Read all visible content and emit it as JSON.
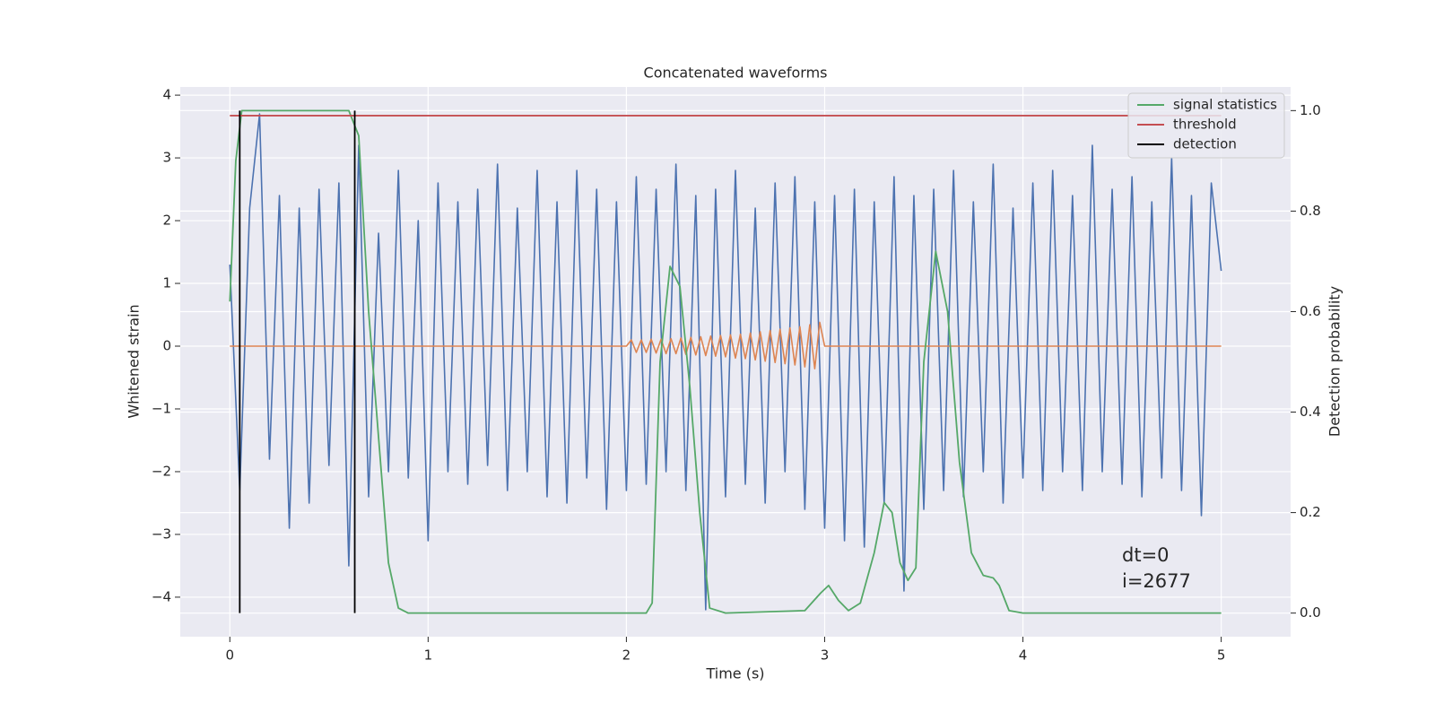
{
  "chart_data": {
    "type": "line",
    "title": "Concatenated waveforms",
    "xlabel": "Time (s)",
    "ylabel": "Whitened strain",
    "y2label": "Detection probability",
    "annotations": [
      "dt=0",
      "i=2677"
    ],
    "xlim": [
      -0.25,
      5.35
    ],
    "ylim": [
      -4.63,
      4.13
    ],
    "y2lim": [
      -0.047,
      1.047
    ],
    "xticks": [
      0,
      1,
      2,
      3,
      4,
      5
    ],
    "yticks": [
      {
        "value": -4,
        "label": "−4"
      },
      {
        "value": -3,
        "label": "−3"
      },
      {
        "value": -2,
        "label": "−2"
      },
      {
        "value": -1,
        "label": "−1"
      },
      0,
      1,
      2,
      3,
      4
    ],
    "y2ticks": [
      {
        "value": 0,
        "label": "0.0"
      },
      0.2,
      0.4,
      0.6,
      0.8,
      {
        "value": 1,
        "label": "1.0"
      }
    ],
    "grid": true,
    "legend": "upper right",
    "series": [
      {
        "color": "#4c72b0",
        "axis": "y",
        "x": [
          0,
          0.05,
          0.1,
          0.15,
          0.2,
          0.25,
          0.3,
          0.35,
          0.4,
          0.45,
          0.5,
          0.55,
          0.6,
          0.65,
          0.7,
          0.75,
          0.8,
          0.85,
          0.9,
          0.95,
          1,
          1.05,
          1.1,
          1.15,
          1.2,
          1.25,
          1.3,
          1.35,
          1.4,
          1.45,
          1.5,
          1.55,
          1.6,
          1.65,
          1.7,
          1.75,
          1.8,
          1.85,
          1.9,
          1.95,
          2,
          2.05,
          2.1,
          2.15,
          2.2,
          2.25,
          2.3,
          2.35,
          2.4,
          2.45,
          2.5,
          2.55,
          2.6,
          2.65,
          2.7,
          2.75,
          2.8,
          2.85,
          2.9,
          2.95,
          3,
          3.05,
          3.1,
          3.15,
          3.2,
          3.25,
          3.3,
          3.35,
          3.4,
          3.45,
          3.5,
          3.55,
          3.6,
          3.65,
          3.7,
          3.75,
          3.8,
          3.85,
          3.9,
          3.95,
          4,
          4.05,
          4.1,
          4.15,
          4.2,
          4.25,
          4.3,
          4.35,
          4.4,
          4.45,
          4.5,
          4.55,
          4.6,
          4.65,
          4.7,
          4.75,
          4.8,
          4.85,
          4.9,
          4.95,
          5
        ],
        "values": [
          1.3,
          -2.3,
          2.2,
          3.7,
          -1.8,
          2.4,
          -2.9,
          2.2,
          -2.5,
          2.5,
          -1.9,
          2.6,
          -3.5,
          3.2,
          -2.4,
          1.8,
          -2.0,
          2.8,
          -2.1,
          2.0,
          -3.1,
          2.6,
          -2.0,
          2.3,
          -2.2,
          2.5,
          -1.9,
          2.9,
          -2.3,
          2.2,
          -2.0,
          2.8,
          -2.4,
          2.3,
          -2.5,
          2.8,
          -2.1,
          2.5,
          -2.6,
          2.3,
          -2.3,
          2.7,
          -2.2,
          2.5,
          -2.0,
          2.9,
          -2.3,
          2.4,
          -4.2,
          2.5,
          -2.4,
          2.8,
          -2.2,
          2.2,
          -2.5,
          2.6,
          -2.0,
          2.7,
          -2.6,
          2.3,
          -2.9,
          2.4,
          -3.1,
          2.5,
          -3.2,
          2.3,
          -2.5,
          2.7,
          -3.9,
          2.4,
          -2.6,
          2.5,
          -2.3,
          2.8,
          -2.4,
          2.3,
          -2.0,
          2.9,
          -2.5,
          2.2,
          -2.1,
          2.6,
          -2.3,
          2.8,
          -2.0,
          2.4,
          -2.3,
          3.2,
          -2.0,
          2.5,
          -2.2,
          2.7,
          -2.4,
          2.3,
          -2.1,
          3.0,
          -2.3,
          2.4,
          -2.7,
          2.6,
          1.2
        ]
      },
      {
        "color": "#dd8452",
        "axis": "y",
        "x": [
          0,
          2,
          2.025,
          2.05,
          2.075,
          2.1,
          2.125,
          2.15,
          2.175,
          2.2,
          2.225,
          2.25,
          2.275,
          2.3,
          2.325,
          2.35,
          2.375,
          2.4,
          2.425,
          2.45,
          2.475,
          2.5,
          2.525,
          2.55,
          2.575,
          2.6,
          2.625,
          2.65,
          2.675,
          2.7,
          2.725,
          2.75,
          2.775,
          2.8,
          2.825,
          2.85,
          2.875,
          2.9,
          2.925,
          2.95,
          2.975,
          3,
          5
        ],
        "values": [
          0,
          0,
          0.1,
          -0.1,
          0.1,
          -0.1,
          0.11,
          -0.11,
          0.11,
          -0.12,
          0.12,
          -0.12,
          0.13,
          -0.13,
          0.14,
          -0.14,
          0.15,
          -0.15,
          0.16,
          -0.16,
          0.17,
          -0.17,
          0.18,
          -0.19,
          0.19,
          -0.2,
          0.21,
          -0.22,
          0.23,
          -0.24,
          0.25,
          -0.26,
          0.27,
          -0.28,
          0.29,
          -0.3,
          0.31,
          -0.33,
          0.34,
          -0.36,
          0.38,
          0,
          0
        ]
      },
      {
        "name": "signal statistics",
        "color": "#55a868",
        "axis": "y2",
        "x": [
          0,
          0.03,
          0.06,
          0.1,
          0.6,
          0.65,
          0.7,
          0.75,
          0.8,
          0.85,
          0.9,
          2.1,
          2.13,
          2.17,
          2.22,
          2.27,
          2.32,
          2.37,
          2.42,
          2.5,
          2.9,
          2.98,
          3.02,
          3.07,
          3.12,
          3.18,
          3.25,
          3.3,
          3.34,
          3.38,
          3.42,
          3.46,
          3.5,
          3.56,
          3.62,
          3.68,
          3.74,
          3.8,
          3.85,
          3.88,
          3.93,
          4,
          5
        ],
        "values": [
          0.62,
          0.9,
          1.0,
          1.0,
          1.0,
          0.95,
          0.6,
          0.35,
          0.1,
          0.01,
          0,
          0,
          0.02,
          0.5,
          0.69,
          0.65,
          0.45,
          0.2,
          0.01,
          0,
          0.005,
          0.04,
          0.055,
          0.025,
          0.005,
          0.02,
          0.12,
          0.22,
          0.2,
          0.1,
          0.065,
          0.09,
          0.5,
          0.72,
          0.6,
          0.3,
          0.12,
          0.075,
          0.07,
          0.055,
          0.005,
          0,
          0
        ]
      },
      {
        "name": "threshold",
        "color": "#c44e52",
        "axis": "y2",
        "x": [
          0,
          5
        ],
        "values": [
          0.99,
          0.99
        ]
      },
      {
        "name": "detection",
        "color": "#000000",
        "axis": "y2",
        "x": [
          0.05,
          0.05,
          null,
          0.63,
          0.63
        ],
        "values": [
          0,
          1,
          null,
          0,
          1
        ]
      }
    ]
  }
}
